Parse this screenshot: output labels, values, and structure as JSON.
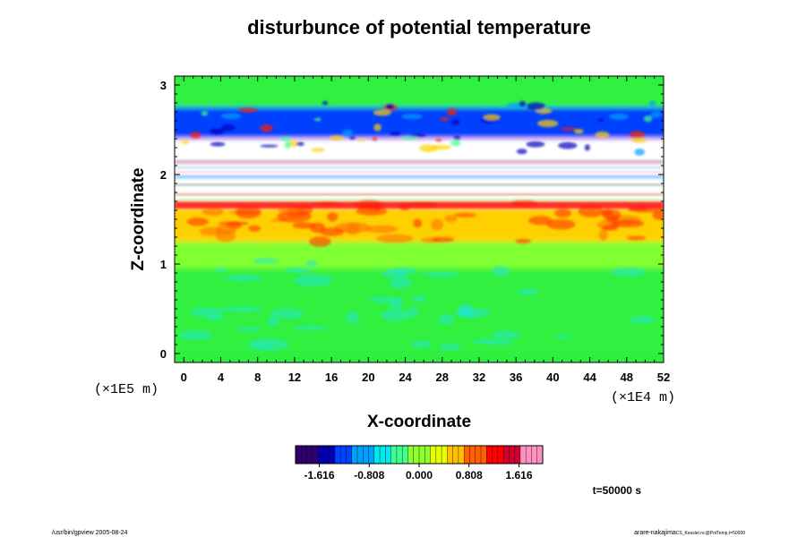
{
  "chart_data": {
    "type": "heatmap",
    "title": "disturbunce of potential temperature",
    "xlabel": "X-coordinate",
    "ylabel": "Z-coordinate",
    "x_unit": "(×1E4 m)",
    "y_unit": "(×1E5 m)",
    "xlim": [
      -1,
      52
    ],
    "ylim": [
      -0.1,
      3.1
    ],
    "x_ticks": [
      0,
      4,
      8,
      12,
      16,
      20,
      24,
      28,
      32,
      36,
      40,
      44,
      48,
      52
    ],
    "y_ticks": [
      0,
      1,
      2,
      3
    ],
    "colorbar": {
      "min": -2.0,
      "max": 2.0,
      "tick_labels": [
        "-1.616",
        "-0.808",
        "0.000",
        "0.808",
        "1.616"
      ],
      "tick_values": [
        -1.616,
        -0.808,
        0.0,
        0.808,
        1.616
      ],
      "colors": [
        "#300070",
        "#0000b0",
        "#0040ff",
        "#00a0ff",
        "#00e8e8",
        "#40ff90",
        "#90ff30",
        "#e8ff00",
        "#ffc000",
        "#ff6000",
        "#ff0000",
        "#d00030",
        "#ff90c0"
      ]
    },
    "bands": [
      {
        "z_from": 0.0,
        "z_to": 0.95,
        "value": 0.0,
        "description_color": "#30f040"
      },
      {
        "z_from": 0.95,
        "z_to": 1.25,
        "value": 0.15,
        "description_color": "#80ff30"
      },
      {
        "z_from": 1.25,
        "z_to": 1.65,
        "value": 0.9,
        "description_color": "#ffd000"
      },
      {
        "z_from": 1.65,
        "z_to": 2.4,
        "value": 3.0,
        "description_color": "#ffffff"
      },
      {
        "z_from": 2.4,
        "z_to": 2.75,
        "value": -1.2,
        "description_color": "#0040ff"
      },
      {
        "z_from": 2.75,
        "z_to": 3.05,
        "value": 0.0,
        "description_color": "#30f040"
      }
    ]
  },
  "time_label": "t=50000 s",
  "footer": {
    "left": "/usr/bin/gpview 2005-08-24",
    "right_main": "arare-nakajima",
    "right_sub": "CS_Kessler.nc@PotTemp,t=50000"
  }
}
